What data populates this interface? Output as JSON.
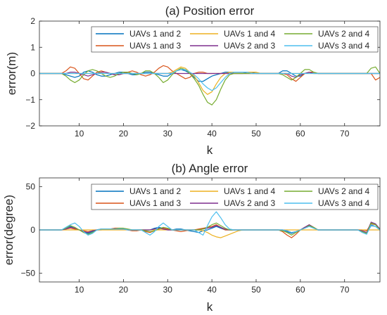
{
  "chart_data": [
    {
      "type": "line",
      "title": "(a) Position error",
      "xlabel": "k",
      "ylabel": "error(m)",
      "xlim": [
        1,
        78
      ],
      "ylim": [
        -2,
        2
      ],
      "xticks": [
        10,
        20,
        30,
        40,
        50,
        60,
        70
      ],
      "yticks": [
        -2,
        -1,
        0,
        1,
        2
      ],
      "legend": {
        "placement": "top-right",
        "columns": 3
      },
      "x": [
        1,
        2,
        3,
        4,
        5,
        6,
        7,
        8,
        9,
        10,
        11,
        12,
        13,
        14,
        15,
        16,
        17,
        18,
        19,
        20,
        21,
        22,
        23,
        24,
        25,
        26,
        27,
        28,
        29,
        30,
        31,
        32,
        33,
        34,
        35,
        36,
        37,
        38,
        39,
        40,
        41,
        42,
        43,
        44,
        45,
        46,
        47,
        48,
        49,
        50,
        51,
        52,
        53,
        54,
        55,
        56,
        57,
        58,
        59,
        60,
        61,
        62,
        63,
        64,
        65,
        66,
        67,
        68,
        69,
        70,
        71,
        72,
        73,
        74,
        75,
        76,
        77,
        78
      ],
      "series": [
        {
          "name": "UAVs 1 and 2",
          "color": "#0072BD",
          "values": [
            0,
            0,
            0,
            0,
            0,
            0,
            -0.05,
            -0.1,
            -0.15,
            -0.1,
            0.05,
            0.1,
            0.05,
            -0.05,
            -0.1,
            -0.1,
            -0.05,
            0,
            0.05,
            0.05,
            0,
            -0.05,
            -0.05,
            0,
            0.05,
            0.05,
            0,
            -0.05,
            -0.1,
            -0.1,
            0,
            0.1,
            0.15,
            0.1,
            0,
            -0.15,
            -0.3,
            -0.3,
            -0.2,
            -0.1,
            -0.05,
            0,
            0.05,
            0.05,
            0,
            0,
            0,
            0.05,
            0.05,
            0,
            0,
            0,
            0,
            0,
            0,
            0.1,
            0.1,
            0,
            -0.1,
            -0.1,
            0,
            0.05,
            0.05,
            0,
            0,
            0,
            0,
            0,
            0,
            0,
            0,
            0,
            0,
            0,
            0,
            0,
            0,
            0
          ]
        },
        {
          "name": "UAVs 1 and 3",
          "color": "#D95319",
          "values": [
            0,
            0,
            0,
            0,
            0,
            0,
            0.1,
            0.25,
            0.2,
            0,
            -0.2,
            -0.25,
            -0.1,
            0.05,
            0.1,
            0.05,
            0,
            -0.05,
            -0.05,
            0,
            0.05,
            0.1,
            0.05,
            -0.05,
            -0.1,
            -0.05,
            0.05,
            0.2,
            0.3,
            0.25,
            0.1,
            0,
            -0.1,
            -0.2,
            -0.15,
            0,
            0.05,
            0.05,
            0,
            0,
            0,
            0,
            0,
            0,
            0,
            0,
            0,
            0,
            0,
            0,
            0,
            0,
            0,
            0,
            0,
            0,
            -0.05,
            -0.2,
            -0.3,
            -0.15,
            0,
            0.05,
            0.05,
            0,
            0,
            0,
            0,
            0,
            0,
            0,
            0,
            0,
            0,
            0,
            0,
            0,
            -0.25,
            -0.15
          ]
        },
        {
          "name": "UAVs 1 and 4",
          "color": "#EDB120",
          "values": [
            0,
            0,
            0,
            0,
            0,
            0,
            0,
            0,
            0,
            0,
            0,
            0,
            0,
            0,
            0,
            0,
            0,
            0,
            0,
            0,
            0,
            0,
            0,
            0,
            0,
            0,
            0,
            0,
            0,
            0,
            0.05,
            0.15,
            0.25,
            0.2,
            0.05,
            -0.1,
            -0.35,
            -0.65,
            -0.8,
            -0.7,
            -0.4,
            -0.15,
            0,
            0.05,
            0.05,
            0.05,
            0.05,
            0.05,
            0.05,
            0.05,
            0,
            0,
            0,
            0,
            0,
            0,
            0,
            0,
            0,
            0,
            0,
            0,
            0,
            0,
            0,
            0,
            0,
            0,
            0,
            0,
            0,
            0,
            0,
            0,
            0,
            0,
            0,
            0
          ]
        },
        {
          "name": "UAVs 2 and 3",
          "color": "#7E2F8E",
          "values": [
            0,
            0,
            0,
            0,
            0,
            0,
            0,
            0.05,
            0.05,
            0,
            -0.05,
            -0.1,
            -0.05,
            0,
            0.05,
            0.05,
            0,
            -0.05,
            -0.05,
            0,
            0,
            0,
            0,
            0,
            0,
            0,
            0,
            0,
            0,
            0,
            0,
            0,
            0,
            0,
            0,
            0,
            0,
            0,
            0,
            0,
            0,
            0,
            0,
            0,
            0,
            0,
            0,
            0,
            0,
            0,
            0,
            0,
            0,
            0,
            0,
            0,
            0,
            -0.1,
            -0.15,
            -0.05,
            0,
            0.05,
            0,
            0,
            0,
            0,
            0,
            0,
            0,
            0,
            0,
            0,
            0,
            0,
            0,
            0,
            0,
            0
          ]
        },
        {
          "name": "UAVs 2 and 4",
          "color": "#77AC30",
          "values": [
            0,
            0,
            0,
            0,
            0,
            0,
            -0.1,
            -0.25,
            -0.35,
            -0.25,
            -0.05,
            0.1,
            0.15,
            0.1,
            0,
            -0.1,
            -0.15,
            -0.1,
            0,
            0.05,
            0.05,
            0,
            -0.05,
            0,
            0.1,
            0.1,
            0,
            -0.15,
            -0.35,
            -0.25,
            -0.05,
            0.1,
            0.2,
            0.15,
            0,
            -0.2,
            -0.45,
            -0.8,
            -1.1,
            -1.2,
            -1.0,
            -0.6,
            -0.25,
            -0.05,
            0,
            0,
            0,
            0,
            0,
            0,
            0,
            0,
            0,
            0,
            0,
            -0.05,
            -0.15,
            -0.25,
            -0.15,
            0,
            0.15,
            0.15,
            0.05,
            0,
            0,
            0,
            0,
            0,
            0,
            0,
            0,
            0,
            0,
            0,
            0,
            0.2,
            0.25,
            0
          ]
        },
        {
          "name": "UAVs 3 and 4",
          "color": "#4DBEEE",
          "values": [
            0,
            0,
            0,
            0,
            0,
            0,
            0,
            0,
            0,
            0,
            0,
            0,
            0,
            0,
            0,
            0,
            0,
            0,
            0,
            0,
            0,
            0,
            0,
            0,
            0,
            0,
            0,
            0,
            0,
            0,
            0,
            0.1,
            0.15,
            0.15,
            0.05,
            -0.05,
            -0.2,
            -0.4,
            -0.55,
            -0.65,
            -0.55,
            -0.35,
            -0.15,
            0,
            0.05,
            0.05,
            0.05,
            0.05,
            0,
            0,
            0,
            0,
            0,
            0,
            0,
            0,
            0,
            0,
            0,
            0,
            0,
            0,
            0,
            0,
            0,
            0,
            0,
            0,
            0,
            0,
            0,
            0,
            0,
            0,
            0,
            0,
            0,
            0
          ]
        }
      ]
    },
    {
      "type": "line",
      "title": "(b) Angle error",
      "xlabel": "k",
      "ylabel": "error(degree)",
      "xlim": [
        1,
        78
      ],
      "ylim": [
        -60,
        60
      ],
      "xticks": [
        10,
        20,
        30,
        40,
        50,
        60,
        70
      ],
      "yticks": [
        -50,
        0,
        50
      ],
      "legend": {
        "placement": "top-right",
        "columns": 3
      },
      "x": [
        1,
        2,
        3,
        4,
        5,
        6,
        7,
        8,
        9,
        10,
        11,
        12,
        13,
        14,
        15,
        16,
        17,
        18,
        19,
        20,
        21,
        22,
        23,
        24,
        25,
        26,
        27,
        28,
        29,
        30,
        31,
        32,
        33,
        34,
        35,
        36,
        37,
        38,
        39,
        40,
        41,
        42,
        43,
        44,
        45,
        46,
        47,
        48,
        49,
        50,
        51,
        52,
        53,
        54,
        55,
        56,
        57,
        58,
        59,
        60,
        61,
        62,
        63,
        64,
        65,
        66,
        67,
        68,
        69,
        70,
        71,
        72,
        73,
        74,
        75,
        76,
        77,
        78
      ],
      "series": [
        {
          "name": "UAVs 1 and 2",
          "color": "#0072BD",
          "values": [
            0,
            0,
            0,
            0,
            0,
            0,
            2,
            4,
            2,
            0,
            -2,
            -4,
            -2,
            0,
            0,
            1,
            1,
            1,
            2,
            1,
            0,
            0,
            0,
            0,
            0,
            0,
            2,
            3,
            2,
            0,
            0,
            1,
            1,
            0,
            -1,
            -2,
            -3,
            -1,
            0,
            2,
            4,
            2,
            0,
            0,
            0,
            0,
            0,
            0,
            0,
            0,
            0,
            0,
            0,
            0,
            0,
            0,
            -2,
            -4,
            -2,
            0,
            3,
            5,
            2,
            0,
            0,
            0,
            0,
            0,
            0,
            0,
            0,
            0,
            0,
            -2,
            -4,
            5,
            4,
            0
          ]
        },
        {
          "name": "UAVs 1 and 3",
          "color": "#D95319",
          "values": [
            0,
            0,
            0,
            0,
            0,
            0,
            1,
            2,
            1,
            0,
            -1,
            -2,
            -1,
            0,
            1,
            1,
            1,
            2,
            2,
            1,
            0,
            -1,
            -1,
            0,
            -2,
            -3,
            -1,
            1,
            2,
            1,
            0,
            -1,
            -2,
            -1,
            0,
            0,
            1,
            2,
            3,
            4,
            6,
            3,
            0,
            0,
            0,
            0,
            0,
            0,
            0,
            0,
            0,
            0,
            0,
            0,
            0,
            -2,
            -6,
            -9,
            -5,
            0,
            3,
            6,
            3,
            0,
            0,
            0,
            0,
            0,
            0,
            0,
            0,
            0,
            0,
            0,
            -1,
            7,
            6,
            1
          ]
        },
        {
          "name": "UAVs 1 and 4",
          "color": "#EDB120",
          "values": [
            0,
            0,
            0,
            0,
            0,
            0,
            0,
            0,
            0,
            0,
            0,
            0,
            0,
            0,
            0,
            0,
            0,
            0,
            0,
            0,
            0,
            0,
            0,
            0,
            0,
            0,
            0,
            0,
            0,
            0,
            0,
            0,
            0,
            0,
            0,
            0,
            0,
            -1,
            -3,
            -6,
            -8,
            -9,
            -7,
            -5,
            -3,
            -1,
            0,
            0,
            0,
            0,
            0,
            0,
            0,
            0,
            0,
            0,
            0,
            0,
            0,
            0,
            0,
            0,
            0,
            0,
            0,
            0,
            0,
            0,
            0,
            0,
            0,
            0,
            0,
            0,
            0,
            0,
            0,
            0
          ]
        },
        {
          "name": "UAVs 2 and 3",
          "color": "#7E2F8E",
          "values": [
            0,
            0,
            0,
            0,
            0,
            0,
            1,
            3,
            2,
            0,
            -2,
            -3,
            -1,
            0,
            1,
            1,
            1,
            1,
            1,
            1,
            0,
            0,
            0,
            0,
            0,
            0,
            1,
            2,
            1,
            0,
            0,
            0,
            0,
            0,
            0,
            0,
            0,
            1,
            2,
            3,
            5,
            3,
            1,
            0,
            0,
            0,
            0,
            0,
            0,
            0,
            0,
            0,
            0,
            0,
            0,
            0,
            -1,
            -3,
            -2,
            0,
            3,
            6,
            3,
            0,
            0,
            0,
            0,
            0,
            0,
            0,
            0,
            0,
            0,
            -1,
            -3,
            9,
            7,
            1
          ]
        },
        {
          "name": "UAVs 2 and 4",
          "color": "#77AC30",
          "values": [
            0,
            0,
            0,
            0,
            0,
            0,
            2,
            5,
            3,
            0,
            -3,
            -5,
            -3,
            0,
            1,
            1,
            1,
            1,
            2,
            2,
            1,
            0,
            0,
            0,
            -1,
            -2,
            -1,
            1,
            3,
            2,
            0,
            0,
            0,
            0,
            0,
            0,
            0,
            1,
            3,
            6,
            8,
            5,
            2,
            0,
            0,
            0,
            0,
            0,
            0,
            0,
            0,
            0,
            0,
            0,
            0,
            -1,
            -3,
            -6,
            -3,
            0,
            2,
            5,
            3,
            0,
            0,
            0,
            0,
            0,
            0,
            0,
            0,
            0,
            0,
            -2,
            -4,
            8,
            6,
            0
          ]
        },
        {
          "name": "UAVs 3 and 4",
          "color": "#4DBEEE",
          "values": [
            0,
            0,
            0,
            0,
            0,
            0,
            3,
            6,
            8,
            4,
            -2,
            -6,
            -4,
            0,
            1,
            1,
            1,
            1,
            1,
            1,
            0,
            0,
            0,
            0,
            -3,
            -6,
            -2,
            4,
            8,
            4,
            0,
            0,
            0,
            0,
            0,
            0,
            -3,
            -6,
            5,
            15,
            21,
            14,
            6,
            1,
            0,
            0,
            0,
            0,
            0,
            0,
            0,
            0,
            0,
            0,
            0,
            0,
            -1,
            -3,
            -2,
            0,
            2,
            4,
            2,
            0,
            0,
            0,
            0,
            0,
            0,
            0,
            0,
            0,
            0,
            -3,
            -5,
            6,
            4,
            0
          ]
        }
      ]
    }
  ]
}
